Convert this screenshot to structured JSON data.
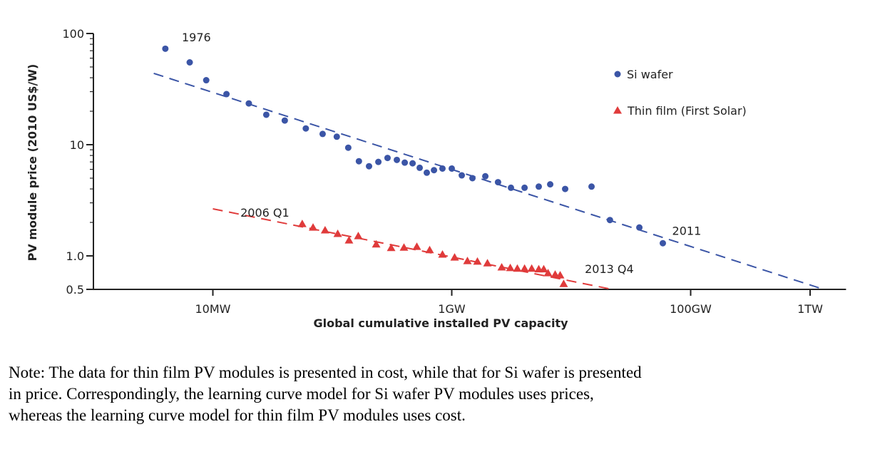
{
  "chart_data": {
    "type": "scatter",
    "title": "",
    "xlabel": "Global cumulative installed PV capacity",
    "ylabel": "PV module price (2010 US$/W)",
    "x_unit": "MW",
    "x_scale": "log",
    "y_scale": "log",
    "xlim": [
      1,
      2000000
    ],
    "ylim": [
      0.5,
      100
    ],
    "grid": false,
    "legend_position": "top-right",
    "x_ticks": [
      {
        "value": 10,
        "label": "10MW"
      },
      {
        "value": 1000,
        "label": "1GW"
      },
      {
        "value": 100000,
        "label": "100GW"
      },
      {
        "value": 1000000,
        "label": "1TW"
      }
    ],
    "y_ticks": [
      {
        "value": 100,
        "label": "100"
      },
      {
        "value": 10,
        "label": "10"
      },
      {
        "value": 1,
        "label": "1.0"
      },
      {
        "value": 0.5,
        "label": "0.5"
      }
    ],
    "series": [
      {
        "name": "Si wafer",
        "marker": "circle",
        "color": "#3b55a6",
        "x": [
          4.0,
          6.4,
          8.8,
          13,
          20,
          28,
          40,
          60,
          83,
          109,
          136,
          167,
          203,
          243,
          290,
          347,
          404,
          470,
          539,
          618,
          710,
          836,
          1000,
          1213,
          1490,
          1910,
          2440,
          3130,
          4070,
          5350,
          6670,
          8900,
          14800,
          21100,
          37200,
          58500
        ],
        "y": [
          73,
          55,
          38,
          28.5,
          23.5,
          18.6,
          16.5,
          14.0,
          12.5,
          11.8,
          9.4,
          7.1,
          6.4,
          7.0,
          7.6,
          7.3,
          6.9,
          6.8,
          6.2,
          5.6,
          5.9,
          6.1,
          6.1,
          5.3,
          5.0,
          5.2,
          4.6,
          4.1,
          4.1,
          4.2,
          4.4,
          4.0,
          4.2,
          2.1,
          1.8,
          1.3
        ],
        "fit": {
          "x": [
            3.2,
            1300000
          ],
          "y": [
            43.8,
            0.5
          ]
        }
      },
      {
        "name": "Thin film (First Solar)",
        "marker": "triangle",
        "color": "#e03b3b",
        "x": [
          56,
          69,
          87,
          111,
          138,
          165,
          233,
          311,
          398,
          510,
          653,
          836,
          1057,
          1353,
          1640,
          1990,
          2620,
          3090,
          3540,
          4070,
          4670,
          5350,
          5890,
          6400,
          7340,
          8080,
          8650
        ],
        "y": [
          1.94,
          1.8,
          1.7,
          1.58,
          1.38,
          1.51,
          1.27,
          1.18,
          1.19,
          1.21,
          1.13,
          1.03,
          0.97,
          0.9,
          0.89,
          0.86,
          0.79,
          0.78,
          0.77,
          0.77,
          0.77,
          0.76,
          0.76,
          0.7,
          0.68,
          0.67,
          0.56
        ],
        "fit": {
          "x": [
            10,
            22000
          ],
          "y": [
            2.65,
            0.5
          ]
        }
      }
    ],
    "annotations": [
      {
        "text": "1976",
        "x": 5.5,
        "y": 85
      },
      {
        "text": "2011",
        "x": 70000,
        "y": 1.55
      },
      {
        "text": "2006 Q1",
        "x": 17,
        "y": 2.25
      },
      {
        "text": "2013 Q4",
        "x": 13000,
        "y": 0.7
      }
    ]
  },
  "note": {
    "lines": [
      "Note: The data for thin film PV modules is presented in cost, while that for Si wafer is presented",
      "in price. Correspondingly, the learning curve model for Si wafer PV modules uses prices,",
      "whereas the learning curve model for thin film PV modules uses cost."
    ]
  }
}
